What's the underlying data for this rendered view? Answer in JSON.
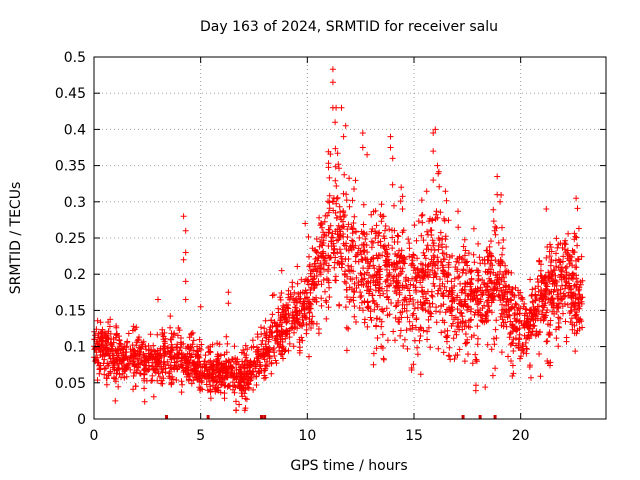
{
  "chart_data": {
    "type": "scatter",
    "title": "Day 163 of 2024, SRMTID for receiver salu",
    "xlabel": "GPS time / hours",
    "ylabel": "SRMTID / TECUs",
    "xlim": [
      0,
      24
    ],
    "ylim": [
      0,
      0.5
    ],
    "xticks": [
      0,
      5,
      10,
      15,
      20
    ],
    "yticks": [
      0,
      0.05,
      0.1,
      0.15,
      0.2,
      0.25,
      0.3,
      0.35,
      0.4,
      0.45,
      0.5
    ],
    "xtick_labels": [
      "0",
      "5",
      "10",
      "15",
      "20"
    ],
    "ytick_labels": [
      "0",
      "0.05",
      "0.1",
      "0.15",
      "0.2",
      "0.25",
      "0.3",
      "0.35",
      "0.4",
      "0.45",
      "0.5"
    ],
    "grid": true,
    "marker": "+",
    "color": "#ff0000",
    "x_range_of_data": [
      0,
      22.9
    ],
    "activity_profile": [
      {
        "x": 0.0,
        "mean": 0.1,
        "spread": 0.025
      },
      {
        "x": 1.0,
        "mean": 0.085,
        "spread": 0.022
      },
      {
        "x": 2.0,
        "mean": 0.085,
        "spread": 0.022
      },
      {
        "x": 3.0,
        "mean": 0.08,
        "spread": 0.02
      },
      {
        "x": 4.0,
        "mean": 0.085,
        "spread": 0.025
      },
      {
        "x": 5.0,
        "mean": 0.07,
        "spread": 0.02
      },
      {
        "x": 6.0,
        "mean": 0.065,
        "spread": 0.02
      },
      {
        "x": 7.0,
        "mean": 0.06,
        "spread": 0.02
      },
      {
        "x": 8.0,
        "mean": 0.09,
        "spread": 0.025
      },
      {
        "x": 9.0,
        "mean": 0.13,
        "spread": 0.03
      },
      {
        "x": 10.0,
        "mean": 0.16,
        "spread": 0.035
      },
      {
        "x": 10.6,
        "mean": 0.22,
        "spread": 0.045
      },
      {
        "x": 11.3,
        "mean": 0.28,
        "spread": 0.06
      },
      {
        "x": 12.0,
        "mean": 0.22,
        "spread": 0.06
      },
      {
        "x": 13.0,
        "mean": 0.2,
        "spread": 0.06
      },
      {
        "x": 14.0,
        "mean": 0.19,
        "spread": 0.06
      },
      {
        "x": 15.0,
        "mean": 0.18,
        "spread": 0.06
      },
      {
        "x": 16.0,
        "mean": 0.21,
        "spread": 0.07
      },
      {
        "x": 17.0,
        "mean": 0.16,
        "spread": 0.05
      },
      {
        "x": 18.0,
        "mean": 0.17,
        "spread": 0.05
      },
      {
        "x": 19.0,
        "mean": 0.19,
        "spread": 0.05
      },
      {
        "x": 20.0,
        "mean": 0.12,
        "spread": 0.03
      },
      {
        "x": 21.0,
        "mean": 0.16,
        "spread": 0.04
      },
      {
        "x": 22.0,
        "mean": 0.19,
        "spread": 0.05
      },
      {
        "x": 22.9,
        "mean": 0.17,
        "spread": 0.04
      }
    ],
    "notable_points": [
      {
        "x": 4.2,
        "y": 0.28
      },
      {
        "x": 4.3,
        "y": 0.26
      },
      {
        "x": 4.3,
        "y": 0.23
      },
      {
        "x": 4.2,
        "y": 0.22
      },
      {
        "x": 4.3,
        "y": 0.19
      },
      {
        "x": 4.3,
        "y": 0.165
      },
      {
        "x": 5.0,
        "y": 0.155
      },
      {
        "x": 6.3,
        "y": 0.175
      },
      {
        "x": 6.3,
        "y": 0.16
      },
      {
        "x": 3.0,
        "y": 0.165
      },
      {
        "x": 8.8,
        "y": 0.205
      },
      {
        "x": 9.9,
        "y": 0.27
      },
      {
        "x": 11.2,
        "y": 0.483
      },
      {
        "x": 11.2,
        "y": 0.465
      },
      {
        "x": 11.2,
        "y": 0.43
      },
      {
        "x": 11.35,
        "y": 0.43
      },
      {
        "x": 11.6,
        "y": 0.43
      },
      {
        "x": 11.3,
        "y": 0.41
      },
      {
        "x": 11.8,
        "y": 0.405
      },
      {
        "x": 11.7,
        "y": 0.39
      },
      {
        "x": 12.6,
        "y": 0.395
      },
      {
        "x": 12.6,
        "y": 0.375
      },
      {
        "x": 12.8,
        "y": 0.365
      },
      {
        "x": 13.9,
        "y": 0.39
      },
      {
        "x": 13.9,
        "y": 0.375
      },
      {
        "x": 14.0,
        "y": 0.36
      },
      {
        "x": 15.9,
        "y": 0.395
      },
      {
        "x": 16.0,
        "y": 0.4
      },
      {
        "x": 15.9,
        "y": 0.37
      },
      {
        "x": 16.1,
        "y": 0.35
      },
      {
        "x": 15.9,
        "y": 0.33
      },
      {
        "x": 18.9,
        "y": 0.335
      },
      {
        "x": 18.9,
        "y": 0.31
      },
      {
        "x": 21.2,
        "y": 0.29
      },
      {
        "x": 22.6,
        "y": 0.305
      },
      {
        "x": 14.4,
        "y": 0.32
      },
      {
        "x": 18.8,
        "y": 0.07
      },
      {
        "x": 18.7,
        "y": 0.06
      },
      {
        "x": 13.1,
        "y": 0.075
      },
      {
        "x": 7.1,
        "y": 0.015
      },
      {
        "x": 1.0,
        "y": 0.025
      },
      {
        "x": 6.8,
        "y": 0.02
      }
    ],
    "rug_marks_x": [
      3.4,
      5.35,
      7.85,
      8.0,
      17.3,
      18.1,
      18.8
    ],
    "point_count": 3000
  }
}
